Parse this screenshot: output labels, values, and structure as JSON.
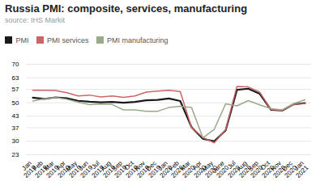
{
  "chart_data": {
    "type": "line",
    "title": "Russia PMI: composite, services, manufacturing",
    "subtitle": "source: IHS Markit",
    "categories": [
      "Jan\n2019",
      "Feb\n2019",
      "Mar\n2019",
      "Apr\n2019",
      "May\n2019",
      "Jun\n2019",
      "Jul\n2019",
      "Aug\n2019",
      "Sep\n2019",
      "Oct\n2019",
      "Nov\n2019",
      "Dec\n2019",
      "Jan\n2020",
      "Feb\n2020",
      "Mar\n2020",
      "Apr\n2020",
      "May\n2020",
      "June\n2020",
      "Jul\n2020",
      "Aug\n2020",
      "Sep\n2020",
      "Oct\n2020",
      "Nov\n2020",
      "Dec\n2020",
      "Jan\n2021"
    ],
    "series": [
      {
        "name": "PMI",
        "color": "#1a1a1a",
        "values": [
          52.6,
          52.0,
          52.8,
          52.3,
          51.0,
          50.5,
          50.2,
          50.4,
          50.0,
          50.4,
          51.3,
          51.5,
          52.2,
          50.9,
          37.3,
          31.3,
          30.0,
          35.6,
          56.7,
          57.3,
          54.7,
          46.3,
          46.0,
          49.2,
          49.8
        ]
      },
      {
        "name": "PMI services",
        "color": "#cc6666",
        "values": [
          56.5,
          56.5,
          56.4,
          55.2,
          53.5,
          54.0,
          53.0,
          53.5,
          52.8,
          53.5,
          55.5,
          56.0,
          56.5,
          55.8,
          37.1,
          32.0,
          29.2,
          36.0,
          58.5,
          58.2,
          55.6,
          46.5,
          46.1,
          49.1,
          49.7
        ]
      },
      {
        "name": "PMI manufacturing",
        "color": "#99aa88",
        "values": [
          50.9,
          52.1,
          52.8,
          51.8,
          50.3,
          49.0,
          49.3,
          49.1,
          46.3,
          46.3,
          45.6,
          45.6,
          47.5,
          48.2,
          47.5,
          31.8,
          36.2,
          49.4,
          48.4,
          51.1,
          48.9,
          46.9,
          46.3,
          49.6,
          51.5
        ]
      }
    ],
    "ylim": [
      23,
      70
    ],
    "yticks": [
      23,
      30,
      37,
      43,
      50,
      57,
      63,
      70
    ],
    "grid": true,
    "legend": "top"
  }
}
